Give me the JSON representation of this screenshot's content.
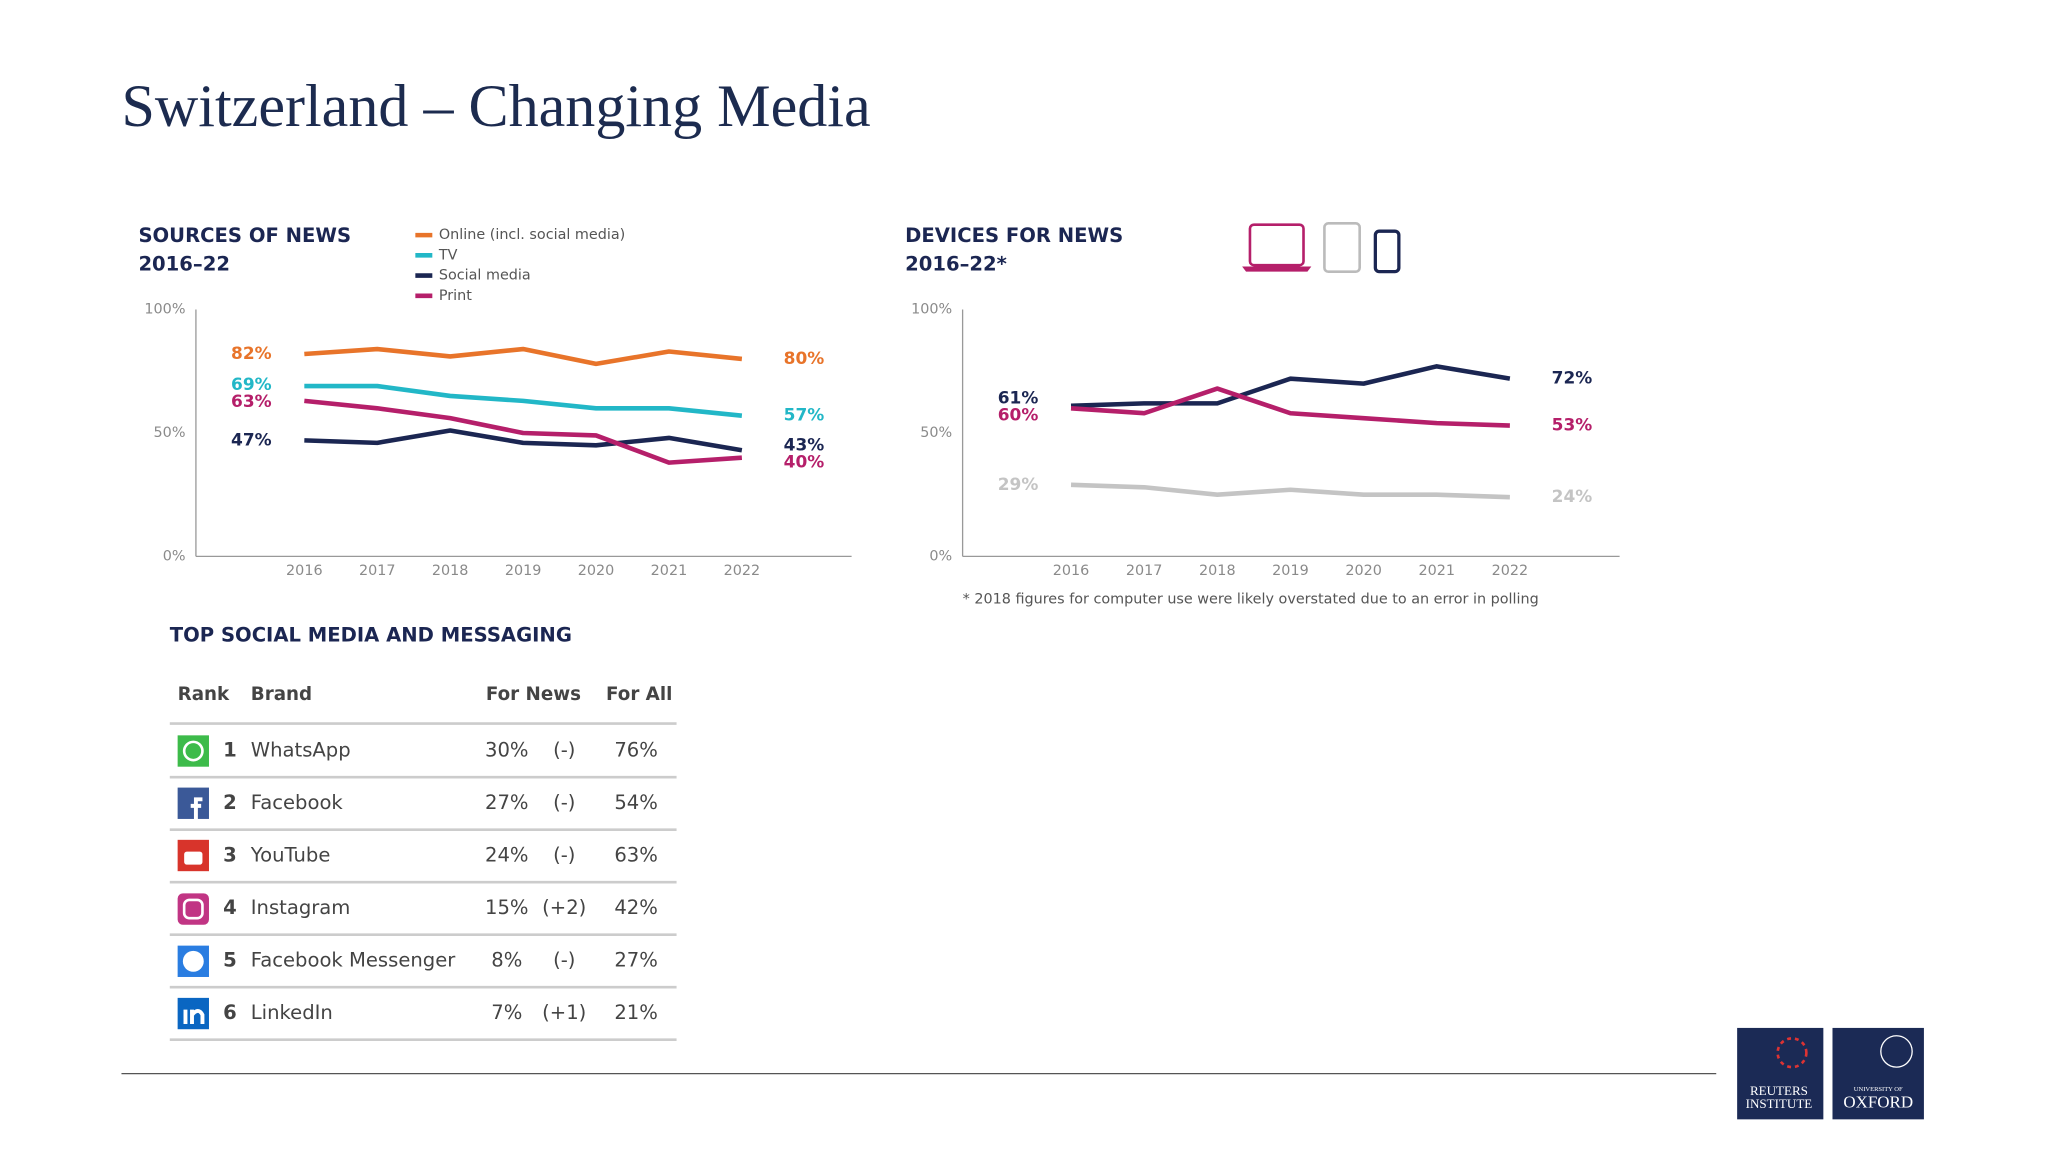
{
  "title": "Switzerland – Changing Media",
  "chart_data": [
    {
      "type": "line",
      "title": "SOURCES OF NEWS",
      "subtitle": "2016–22",
      "categories": [
        "2016",
        "2017",
        "2018",
        "2019",
        "2020",
        "2021",
        "2022"
      ],
      "ylim": [
        0,
        100
      ],
      "yticks": [
        {
          "value": 0,
          "label": "0%"
        },
        {
          "value": 50,
          "label": "50%"
        },
        {
          "value": 100,
          "label": "100%"
        }
      ],
      "legend": "top-right",
      "series": [
        {
          "name": "Online (incl. social media)",
          "color": "#e8742a",
          "values": [
            82,
            84,
            81,
            84,
            78,
            83,
            80
          ],
          "value_labels": [
            "82%",
            null,
            null,
            null,
            null,
            null,
            "80%"
          ]
        },
        {
          "name": "TV",
          "color": "#22b7c7",
          "values": [
            69,
            69,
            65,
            63,
            60,
            60,
            57
          ],
          "value_labels": [
            "69%",
            null,
            null,
            null,
            null,
            null,
            "57%"
          ]
        },
        {
          "name": "Social media",
          "color": "#1b2652",
          "values": [
            47,
            46,
            51,
            46,
            45,
            48,
            43
          ],
          "value_labels": [
            "47%",
            null,
            null,
            null,
            null,
            null,
            "43%"
          ]
        },
        {
          "name": "Print",
          "color": "#b51f6a",
          "values": [
            63,
            60,
            56,
            50,
            49,
            38,
            40
          ],
          "value_labels": [
            "63%",
            null,
            null,
            null,
            null,
            null,
            "40%"
          ]
        }
      ]
    },
    {
      "type": "line",
      "title": "DEVICES FOR NEWS",
      "subtitle": "2016–22*",
      "categories": [
        "2016",
        "2017",
        "2018",
        "2019",
        "2020",
        "2021",
        "2022"
      ],
      "ylim": [
        0,
        100
      ],
      "yticks": [
        {
          "value": 0,
          "label": "0%"
        },
        {
          "value": 50,
          "label": "50%"
        },
        {
          "value": 100,
          "label": "100%"
        }
      ],
      "footnote": "* 2018 figures for computer use were likely overstated due to an error in polling",
      "series": [
        {
          "color": "#1b2652",
          "values": [
            61,
            62,
            62,
            72,
            70,
            77,
            72
          ],
          "value_labels": [
            "61%",
            null,
            null,
            null,
            null,
            null,
            "72%"
          ]
        },
        {
          "color": "#b51f6a",
          "values": [
            60,
            58,
            68,
            58,
            56,
            54,
            53
          ],
          "value_labels": [
            "60%",
            null,
            null,
            null,
            null,
            null,
            "53%"
          ]
        },
        {
          "color": "#c4c4c4",
          "values": [
            29,
            28,
            25,
            27,
            25,
            25,
            24
          ],
          "value_labels": [
            "29%",
            null,
            null,
            null,
            null,
            null,
            "24%"
          ]
        }
      ]
    }
  ],
  "table": {
    "title": "TOP SOCIAL MEDIA AND MESSAGING",
    "header": [
      "Rank",
      "Brand",
      "For News",
      "For All"
    ],
    "rows": [
      [
        1,
        "WhatsApp",
        "30%",
        "(-)",
        "76%"
      ],
      [
        2,
        "Facebook",
        "27%",
        "(-)",
        "54%"
      ],
      [
        3,
        "YouTube",
        "24%",
        "(-)",
        "63%"
      ],
      [
        4,
        "Instagram",
        "15%",
        "(+2)",
        "42%"
      ],
      [
        5,
        "Facebook Messenger",
        "8%",
        "(-)",
        "27%"
      ],
      [
        6,
        "LinkedIn",
        "7%",
        "(+1)",
        "21%"
      ]
    ]
  },
  "logos": {
    "reuters": [
      "REUTERS",
      "INSTITUTE"
    ],
    "oxford": [
      "UNIVERSITY OF",
      "OXFORD"
    ]
  }
}
